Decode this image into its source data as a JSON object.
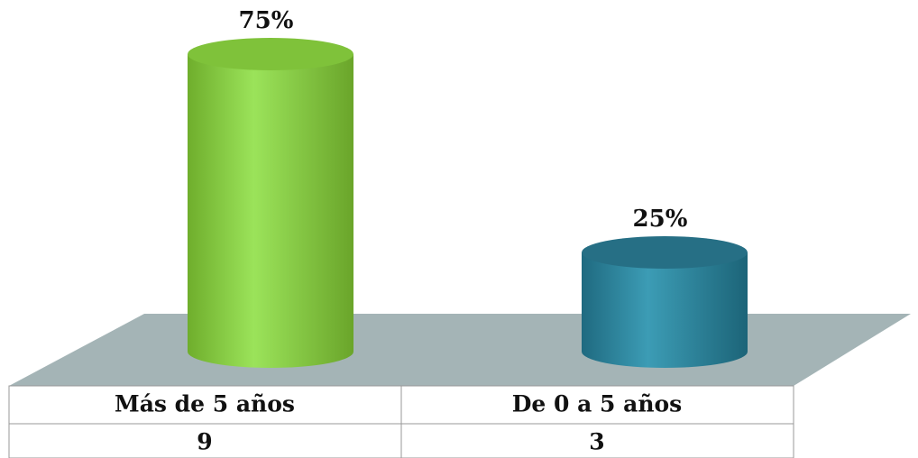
{
  "chart_data": {
    "type": "bar",
    "categories": [
      "Más de 5 años",
      "De 0 a 5 años"
    ],
    "values": [
      75,
      25
    ],
    "value_labels": [
      "75%",
      "25%"
    ],
    "counts": [
      9,
      3
    ],
    "colors": [
      "#8fd444",
      "#2e8aa3"
    ]
  }
}
